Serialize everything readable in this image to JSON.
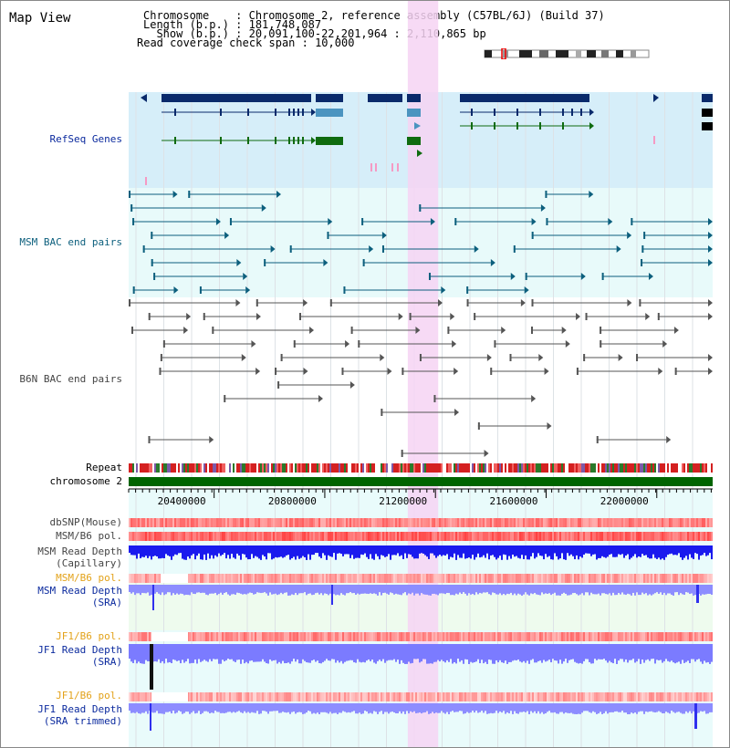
{
  "title": "Map View",
  "info": {
    "chromosome_line": "Chromosome    : Chromosome 2, reference assembly (C57BL/6J) (Build 37)",
    "length_line": "Length (b.p.) : 181,748,087",
    "show_line": "  Show (b.p.) : 20,091,100-22,201,964 : 2,110,865 bp",
    "span_line": "Read coverage check span : 10,000"
  },
  "tracks": {
    "refseq": "RefSeq Genes",
    "msm_bac": "MSM BAC end pairs",
    "b6n_bac": "B6N BAC end pairs",
    "repeat": "Repeat",
    "chromosome": "chromosome 2",
    "dbsnp": "dbSNP(Mouse)",
    "msm_pol": "MSM/B6 pol.",
    "msm_depth_cap_1": "MSM Read Depth",
    "msm_depth_cap_2": "(Capillary)",
    "msm_pol_2": "MSM/B6 pol.",
    "msm_depth_sra_1": "MSM Read Depth",
    "msm_depth_sra_2": "(SRA)",
    "jf1_pol": "JF1/B6 pol.",
    "jf1_depth_sra_1": "JF1 Read Depth",
    "jf1_depth_sra_2": "(SRA)",
    "jf1_pol_2": "JF1/B6 pol.",
    "jf1_depth_trim_1": "JF1 Read Depth",
    "jf1_depth_trim_2": "(SRA trimmed)"
  },
  "axis": {
    "ticks": [
      {
        "value": 20400000,
        "label": "20400000"
      },
      {
        "value": 20800000,
        "label": "20800000"
      },
      {
        "value": 21200000,
        "label": "21200000"
      },
      {
        "value": 21600000,
        "label": "21600000"
      },
      {
        "value": 22000000,
        "label": "22000000"
      }
    ],
    "start": 20091100,
    "end": 22201964
  },
  "highlight": {
    "start": 21100000,
    "end": 21210000
  },
  "colors": {
    "refseq_bg": "#d6eef9",
    "msm_bg": "#e8fafa",
    "highlight": "#f6d4f3",
    "gene_dark": "#0a2a6b",
    "gene_mid": "#4b94c0",
    "gene_green": "#0f6b0f",
    "bac_teal": "#0c5f7d",
    "bac_gray": "#555555",
    "chrom": "#006400",
    "depth_blue": "#1a1aee",
    "depth_light": "#7b7bff"
  }
}
